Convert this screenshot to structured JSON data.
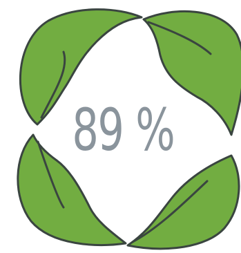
{
  "badge": {
    "value_text": "89 %",
    "value": 89,
    "unit": "%"
  },
  "colors": {
    "leaf_fill": "#72ad41",
    "leaf_stroke": "#3a4540",
    "text": "#8a949c",
    "background": "#ffffff"
  }
}
